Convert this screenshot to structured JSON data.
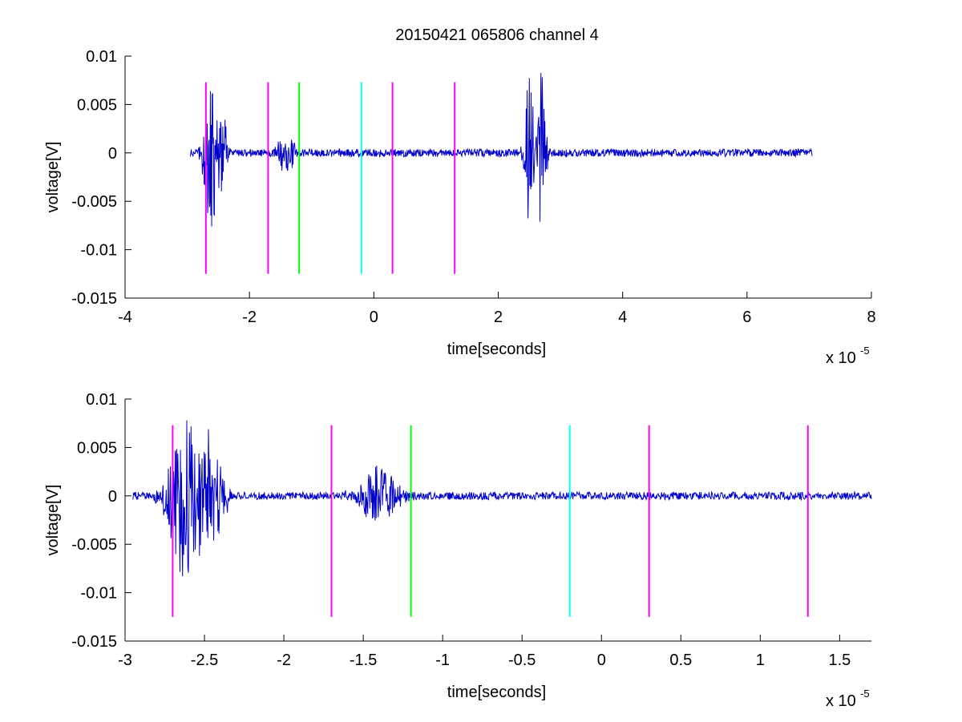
{
  "figure_title": "20150421 065806 channel 4",
  "colors": {
    "signal": "#0000cc",
    "marker_magenta": "#ff00ff",
    "marker_green": "#00ff00",
    "marker_cyan": "#00ffff",
    "axes": "#000000"
  },
  "chart_data": [
    {
      "type": "line",
      "title": "20150421 065806 channel 4",
      "xlabel": "time[seconds]",
      "ylabel": "voltage[V]",
      "x_multiplier_label": "x 10",
      "x_multiplier_exponent": "-5",
      "xlim": [
        -4,
        8
      ],
      "ylim": [
        -0.015,
        0.01
      ],
      "xticks": [
        -4,
        -2,
        0,
        2,
        4,
        6,
        8
      ],
      "xtick_labels": [
        "-4",
        "-2",
        "0",
        "2",
        "4",
        "6",
        "8"
      ],
      "yticks": [
        0.01,
        0.005,
        0,
        -0.005,
        -0.01,
        -0.015
      ],
      "ytick_labels": [
        "0.01",
        "0.005",
        "0",
        "-0.005",
        "-0.01",
        "-0.015"
      ],
      "grid": false,
      "series": [
        {
          "x_range": [
            -2.95,
            7.05
          ],
          "bursts": [
            {
              "center": -2.62,
              "amplitude": 0.0085,
              "width": 0.12
            },
            {
              "center": -2.45,
              "amplitude": 0.0055,
              "width": 0.08
            },
            {
              "center": -1.4,
              "amplitude": 0.003,
              "width": 0.12
            },
            {
              "center": 2.5,
              "amplitude": 0.009,
              "width": 0.08
            },
            {
              "center": 2.7,
              "amplitude": 0.0085,
              "width": 0.08
            }
          ],
          "noise_amplitude": 0.0004
        }
      ],
      "markers": [
        {
          "x": -2.7,
          "color": "magenta"
        },
        {
          "x": -1.7,
          "color": "magenta"
        },
        {
          "x": -1.2,
          "color": "green"
        },
        {
          "x": -0.2,
          "color": "cyan"
        },
        {
          "x": 0.3,
          "color": "magenta"
        },
        {
          "x": 1.3,
          "color": "magenta"
        }
      ],
      "marker_yrange": [
        -0.0125,
        0.0073
      ]
    },
    {
      "type": "line",
      "xlabel": "time[seconds]",
      "ylabel": "voltage[V]",
      "x_multiplier_label": "x 10",
      "x_multiplier_exponent": "-5",
      "xlim": [
        -3,
        1.7
      ],
      "ylim": [
        -0.015,
        0.01
      ],
      "xticks": [
        -3,
        -2.5,
        -2,
        -1.5,
        -1,
        -0.5,
        0,
        0.5,
        1,
        1.5
      ],
      "xtick_labels": [
        "-3",
        "-2.5",
        "-2",
        "-1.5",
        "-1",
        "-0.5",
        "0",
        "0.5",
        "1",
        "1.5"
      ],
      "yticks": [
        0.01,
        0.005,
        0,
        -0.005,
        -0.01,
        -0.015
      ],
      "ytick_labels": [
        "0.01",
        "0.005",
        "0",
        "-0.005",
        "-0.01",
        "-0.015"
      ],
      "grid": false,
      "series": [
        {
          "x_range": [
            -2.95,
            1.7
          ],
          "bursts": [
            {
              "center": -2.62,
              "amplitude": 0.0085,
              "width": 0.12
            },
            {
              "center": -2.45,
              "amplitude": 0.0055,
              "width": 0.08
            },
            {
              "center": -1.4,
              "amplitude": 0.003,
              "width": 0.12
            }
          ],
          "noise_amplitude": 0.0004
        }
      ],
      "markers": [
        {
          "x": -2.7,
          "color": "magenta"
        },
        {
          "x": -1.7,
          "color": "magenta"
        },
        {
          "x": -1.2,
          "color": "green"
        },
        {
          "x": -0.2,
          "color": "cyan"
        },
        {
          "x": 0.3,
          "color": "magenta"
        },
        {
          "x": 1.3,
          "color": "magenta"
        }
      ],
      "marker_yrange": [
        -0.0125,
        0.0073
      ]
    }
  ]
}
